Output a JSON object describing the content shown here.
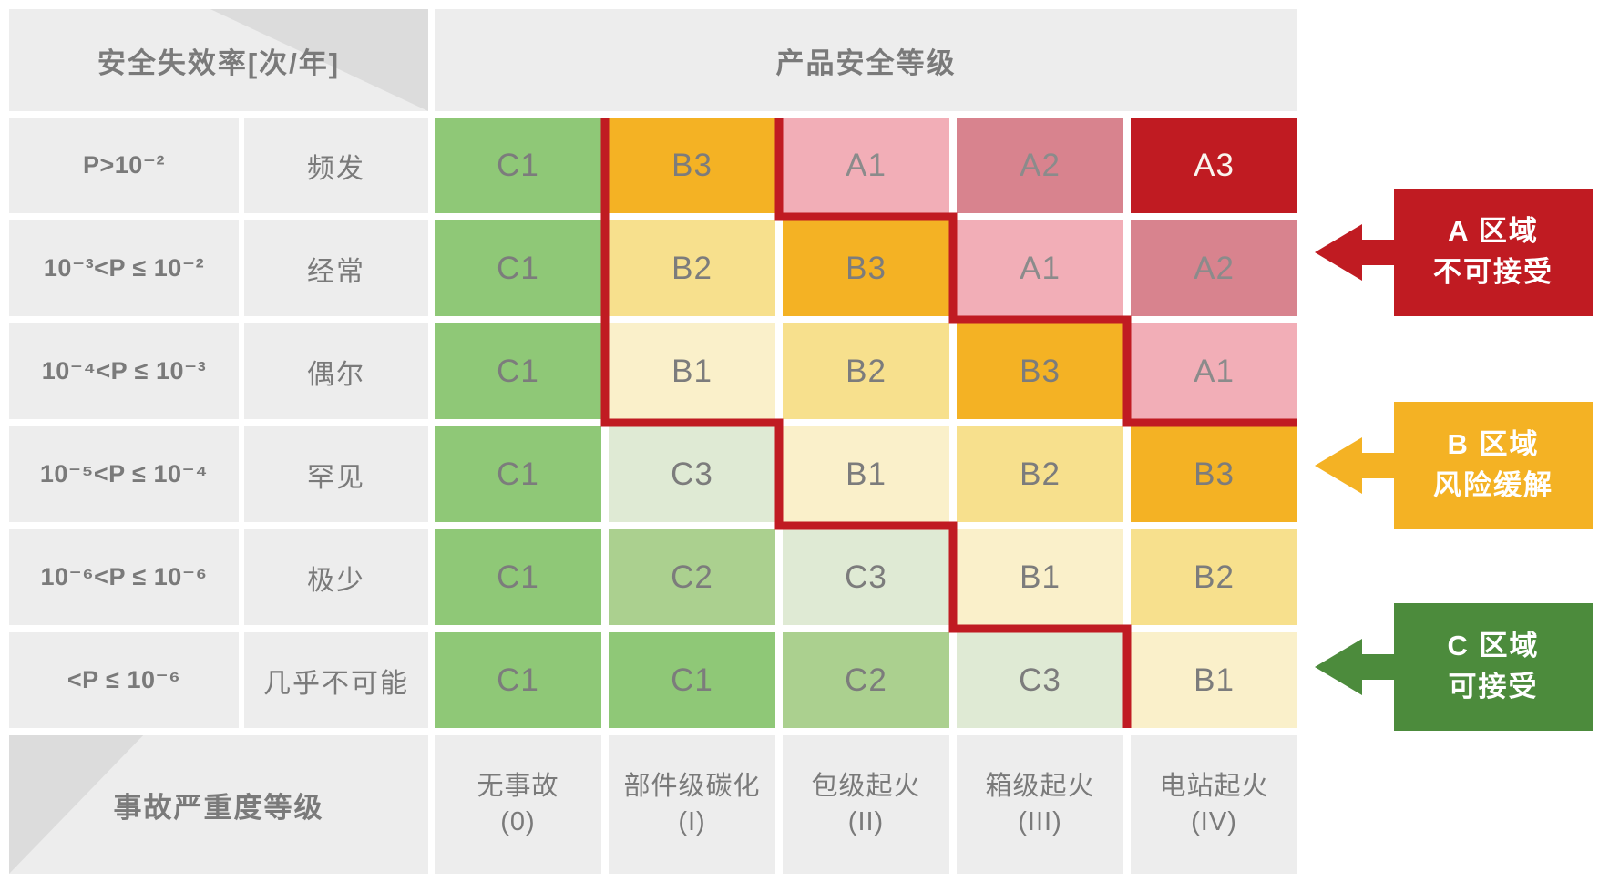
{
  "top": {
    "rate_header": "安全失效率[次/年]",
    "level_header": "产品安全等级"
  },
  "matrix": {
    "rows": [
      {
        "rate": "P>10⁻²",
        "frequency": "频发",
        "cells": [
          "C1",
          "B3",
          "A1",
          "A2",
          "A3"
        ]
      },
      {
        "rate": "10⁻³<P ≤ 10⁻²",
        "frequency": "经常",
        "cells": [
          "C1",
          "B2",
          "B3",
          "A1",
          "A2"
        ]
      },
      {
        "rate": "10⁻⁴<P ≤ 10⁻³",
        "frequency": "偶尔",
        "cells": [
          "C1",
          "B1",
          "B2",
          "B3",
          "A1"
        ]
      },
      {
        "rate": "10⁻⁵<P ≤ 10⁻⁴",
        "frequency": "罕见",
        "cells": [
          "C1",
          "C3",
          "B1",
          "B2",
          "B3"
        ]
      },
      {
        "rate": "10⁻⁶<P ≤ 10⁻⁶",
        "frequency": "极少",
        "cells": [
          "C1",
          "C2",
          "C3",
          "B1",
          "B2"
        ]
      },
      {
        "rate": "<P ≤ 10⁻⁶",
        "frequency": "几乎不可能",
        "cells": [
          "C1",
          "C1",
          "C2",
          "C3",
          "B1"
        ]
      }
    ]
  },
  "bottom": {
    "severity_header": "事故严重度等级",
    "columns": [
      {
        "name": "无事故",
        "grade": "(0)"
      },
      {
        "name": "部件级碳化",
        "grade": "(I)"
      },
      {
        "name": "包级起火",
        "grade": "(II)"
      },
      {
        "name": "箱级起火",
        "grade": "(III)"
      },
      {
        "name": "电站起火",
        "grade": "(IV)"
      }
    ]
  },
  "legend": [
    {
      "zone": "A",
      "line1": "A 区域",
      "line2": "不可接受",
      "color": "#c01b22"
    },
    {
      "zone": "B",
      "line1": "B 区域",
      "line2": "风险缓解",
      "color": "#f4b224"
    },
    {
      "zone": "C",
      "line1": "C 区域",
      "line2": "可接受",
      "color": "#4c8b3c"
    }
  ],
  "palette": {
    "C1": {
      "bg": "#8fc877",
      "fg": "#7c7c7c"
    },
    "C2": {
      "bg": "#abd08f",
      "fg": "#7c7c7c"
    },
    "C3": {
      "bg": "#dfead4",
      "fg": "#7c7c7c"
    },
    "B1": {
      "bg": "#faf0ca",
      "fg": "#7c7c7c"
    },
    "B2": {
      "bg": "#f7e08d",
      "fg": "#7c7c7c"
    },
    "B3": {
      "bg": "#f4b224",
      "fg": "#7c7c7c"
    },
    "A1": {
      "bg": "#f2aeb7",
      "fg": "#8b8b8b"
    },
    "A2": {
      "bg": "#d8838e",
      "fg": "#8b8b8b"
    },
    "A3": {
      "bg": "#c01b22",
      "fg": "#faf4ee"
    }
  },
  "boundary_line_color": "#c01b22",
  "ui_colors": {
    "cell_gray": "#ededed",
    "triangle_gray": "#dcdcdc",
    "label_gray": "#7a7a7a"
  }
}
